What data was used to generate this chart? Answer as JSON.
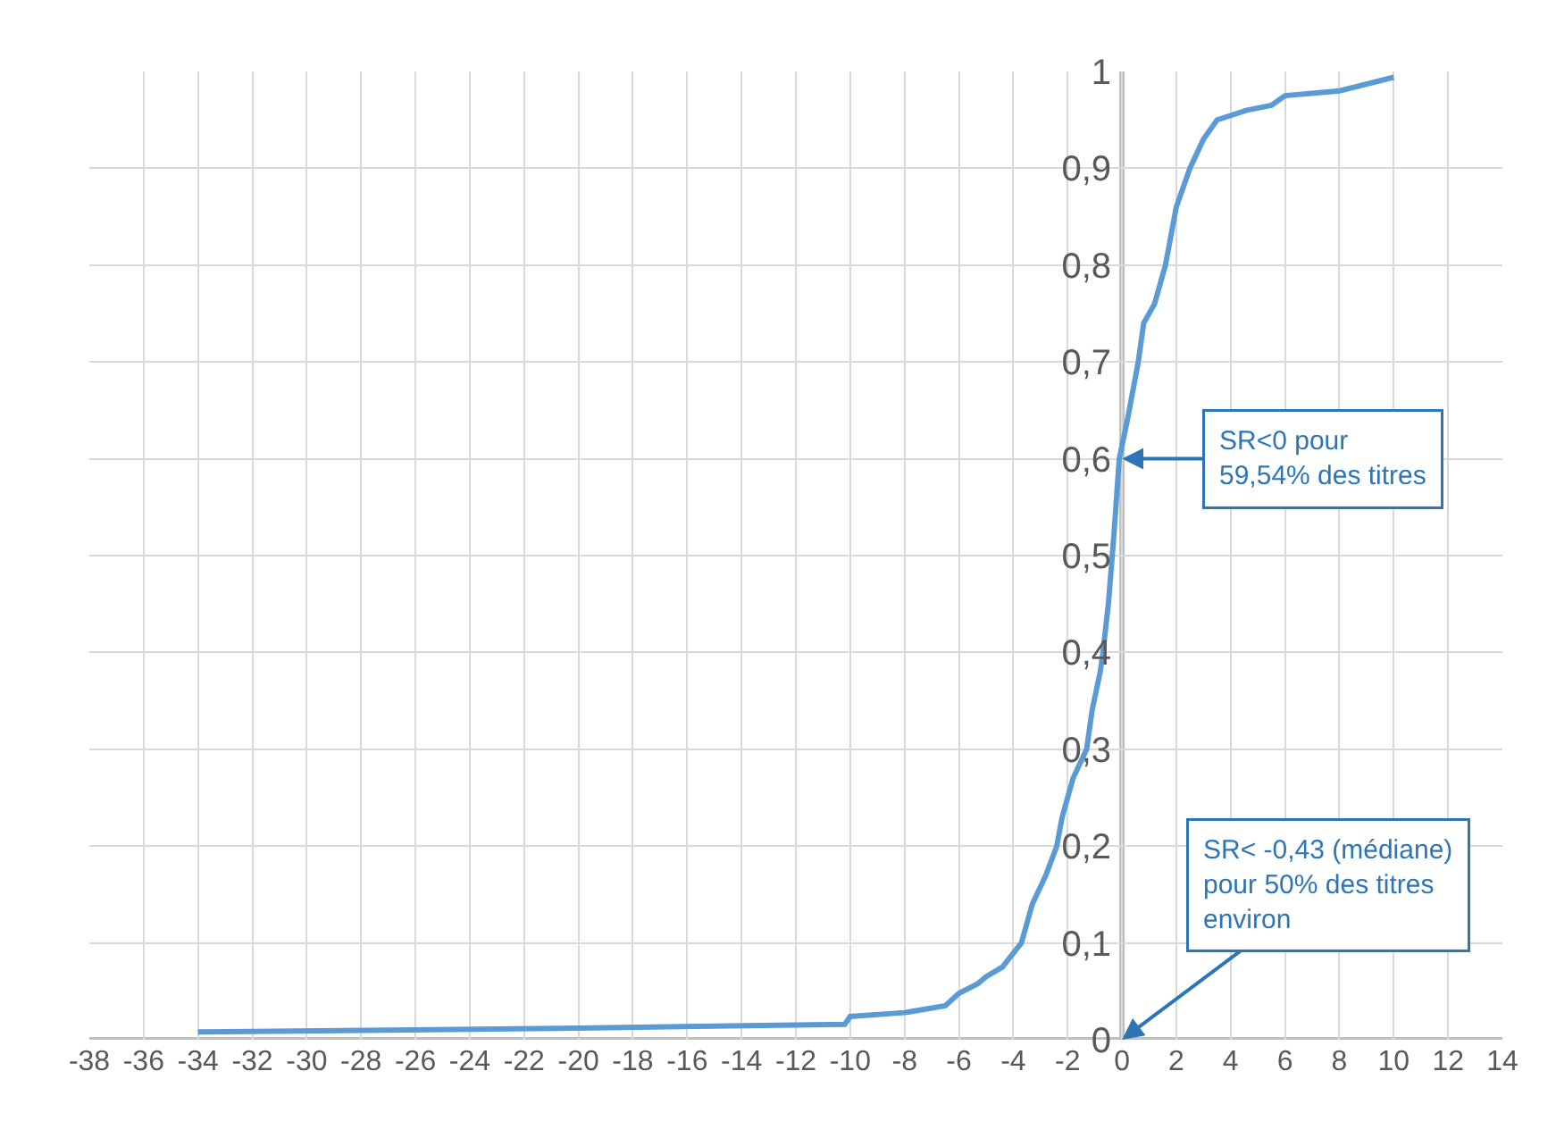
{
  "chart_data": {
    "type": "line",
    "x": [
      -34,
      -27,
      -20,
      -15,
      -10.2,
      -10,
      -8,
      -6.5,
      -6,
      -5.3,
      -5,
      -4.4,
      -3.7,
      -3.3,
      -2.8,
      -2.4,
      -2.2,
      -1.8,
      -1.3,
      -1.1,
      -0.8,
      -0.7,
      -0.5,
      -0.3,
      -0.1,
      0.2,
      0.6,
      0.8,
      1.2,
      1.6,
      2.0,
      2.5,
      3.0,
      3.5,
      4.6,
      5.5,
      6.0,
      8.0,
      10.0
    ],
    "series": [
      {
        "color": "#5b9bd5",
        "values": [
          0.008,
          0.01,
          0.012,
          0.014,
          0.016,
          0.024,
          0.028,
          0.035,
          0.048,
          0.058,
          0.065,
          0.075,
          0.1,
          0.14,
          0.17,
          0.2,
          0.23,
          0.27,
          0.3,
          0.34,
          0.38,
          0.4,
          0.45,
          0.52,
          0.6,
          0.64,
          0.7,
          0.74,
          0.76,
          0.8,
          0.86,
          0.9,
          0.93,
          0.95,
          0.96,
          0.965,
          0.975,
          0.98,
          0.994
        ]
      }
    ],
    "xlim": [
      -38,
      14
    ],
    "xticks": [
      -38,
      -36,
      -34,
      -32,
      -30,
      -28,
      -26,
      -24,
      -22,
      -20,
      -18,
      -16,
      -14,
      -12,
      -10,
      -8,
      -6,
      -4,
      -2,
      0,
      2,
      4,
      6,
      8,
      10,
      12,
      14
    ],
    "ylim": [
      0,
      1
    ],
    "yticks": [
      0,
      {
        "value": 0.1,
        "label": "0,1"
      },
      {
        "value": 0.2,
        "label": "0,2"
      },
      {
        "value": 0.3,
        "label": "0,3"
      },
      {
        "value": 0.4,
        "label": "0,4"
      },
      {
        "value": 0.5,
        "label": "0,5"
      },
      {
        "value": 0.6,
        "label": "0,6"
      },
      {
        "value": 0.7,
        "label": "0,7"
      },
      {
        "value": 0.8,
        "label": "0,8"
      },
      {
        "value": 0.9,
        "label": "0,9"
      },
      1
    ],
    "grid": true,
    "marker": "none",
    "line_style": "solid",
    "annotations": [
      {
        "text": "SR<0 pour\n59,54% des titres",
        "x": 0,
        "y": 0.6
      },
      "SR< -0,43 (médiane)\npour 50% des titres\nenviron"
    ]
  }
}
